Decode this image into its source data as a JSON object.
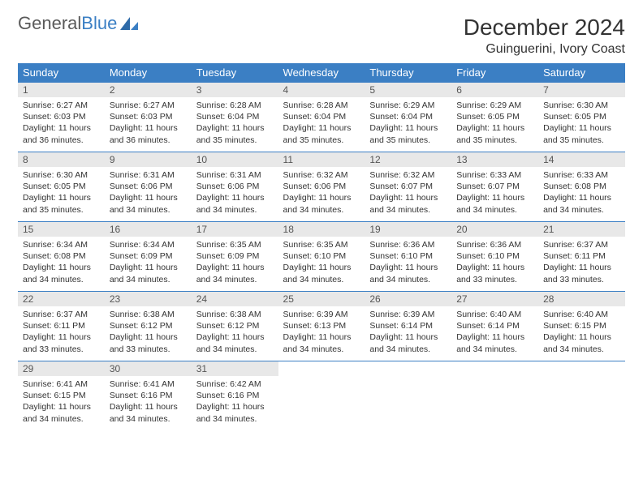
{
  "logo": {
    "text_gray": "General",
    "text_blue": "Blue"
  },
  "title": "December 2024",
  "location": "Guinguerini, Ivory Coast",
  "colors": {
    "header_bg": "#3b7fc4",
    "header_text": "#ffffff",
    "daynum_bg": "#e8e8e8",
    "border": "#3b7fc4",
    "body_text": "#333333",
    "logo_gray": "#5a5a5a",
    "logo_blue": "#3b7fc4"
  },
  "weekdays": [
    "Sunday",
    "Monday",
    "Tuesday",
    "Wednesday",
    "Thursday",
    "Friday",
    "Saturday"
  ],
  "days": [
    {
      "n": 1,
      "sunrise": "6:27 AM",
      "sunset": "6:03 PM",
      "daylight": "11 hours and 36 minutes."
    },
    {
      "n": 2,
      "sunrise": "6:27 AM",
      "sunset": "6:03 PM",
      "daylight": "11 hours and 36 minutes."
    },
    {
      "n": 3,
      "sunrise": "6:28 AM",
      "sunset": "6:04 PM",
      "daylight": "11 hours and 35 minutes."
    },
    {
      "n": 4,
      "sunrise": "6:28 AM",
      "sunset": "6:04 PM",
      "daylight": "11 hours and 35 minutes."
    },
    {
      "n": 5,
      "sunrise": "6:29 AM",
      "sunset": "6:04 PM",
      "daylight": "11 hours and 35 minutes."
    },
    {
      "n": 6,
      "sunrise": "6:29 AM",
      "sunset": "6:05 PM",
      "daylight": "11 hours and 35 minutes."
    },
    {
      "n": 7,
      "sunrise": "6:30 AM",
      "sunset": "6:05 PM",
      "daylight": "11 hours and 35 minutes."
    },
    {
      "n": 8,
      "sunrise": "6:30 AM",
      "sunset": "6:05 PM",
      "daylight": "11 hours and 35 minutes."
    },
    {
      "n": 9,
      "sunrise": "6:31 AM",
      "sunset": "6:06 PM",
      "daylight": "11 hours and 34 minutes."
    },
    {
      "n": 10,
      "sunrise": "6:31 AM",
      "sunset": "6:06 PM",
      "daylight": "11 hours and 34 minutes."
    },
    {
      "n": 11,
      "sunrise": "6:32 AM",
      "sunset": "6:06 PM",
      "daylight": "11 hours and 34 minutes."
    },
    {
      "n": 12,
      "sunrise": "6:32 AM",
      "sunset": "6:07 PM",
      "daylight": "11 hours and 34 minutes."
    },
    {
      "n": 13,
      "sunrise": "6:33 AM",
      "sunset": "6:07 PM",
      "daylight": "11 hours and 34 minutes."
    },
    {
      "n": 14,
      "sunrise": "6:33 AM",
      "sunset": "6:08 PM",
      "daylight": "11 hours and 34 minutes."
    },
    {
      "n": 15,
      "sunrise": "6:34 AM",
      "sunset": "6:08 PM",
      "daylight": "11 hours and 34 minutes."
    },
    {
      "n": 16,
      "sunrise": "6:34 AM",
      "sunset": "6:09 PM",
      "daylight": "11 hours and 34 minutes."
    },
    {
      "n": 17,
      "sunrise": "6:35 AM",
      "sunset": "6:09 PM",
      "daylight": "11 hours and 34 minutes."
    },
    {
      "n": 18,
      "sunrise": "6:35 AM",
      "sunset": "6:10 PM",
      "daylight": "11 hours and 34 minutes."
    },
    {
      "n": 19,
      "sunrise": "6:36 AM",
      "sunset": "6:10 PM",
      "daylight": "11 hours and 34 minutes."
    },
    {
      "n": 20,
      "sunrise": "6:36 AM",
      "sunset": "6:10 PM",
      "daylight": "11 hours and 33 minutes."
    },
    {
      "n": 21,
      "sunrise": "6:37 AM",
      "sunset": "6:11 PM",
      "daylight": "11 hours and 33 minutes."
    },
    {
      "n": 22,
      "sunrise": "6:37 AM",
      "sunset": "6:11 PM",
      "daylight": "11 hours and 33 minutes."
    },
    {
      "n": 23,
      "sunrise": "6:38 AM",
      "sunset": "6:12 PM",
      "daylight": "11 hours and 33 minutes."
    },
    {
      "n": 24,
      "sunrise": "6:38 AM",
      "sunset": "6:12 PM",
      "daylight": "11 hours and 34 minutes."
    },
    {
      "n": 25,
      "sunrise": "6:39 AM",
      "sunset": "6:13 PM",
      "daylight": "11 hours and 34 minutes."
    },
    {
      "n": 26,
      "sunrise": "6:39 AM",
      "sunset": "6:14 PM",
      "daylight": "11 hours and 34 minutes."
    },
    {
      "n": 27,
      "sunrise": "6:40 AM",
      "sunset": "6:14 PM",
      "daylight": "11 hours and 34 minutes."
    },
    {
      "n": 28,
      "sunrise": "6:40 AM",
      "sunset": "6:15 PM",
      "daylight": "11 hours and 34 minutes."
    },
    {
      "n": 29,
      "sunrise": "6:41 AM",
      "sunset": "6:15 PM",
      "daylight": "11 hours and 34 minutes."
    },
    {
      "n": 30,
      "sunrise": "6:41 AM",
      "sunset": "6:16 PM",
      "daylight": "11 hours and 34 minutes."
    },
    {
      "n": 31,
      "sunrise": "6:42 AM",
      "sunset": "6:16 PM",
      "daylight": "11 hours and 34 minutes."
    }
  ],
  "labels": {
    "sunrise_prefix": "Sunrise: ",
    "sunset_prefix": "Sunset: ",
    "daylight_prefix": "Daylight: "
  },
  "start_weekday": 0,
  "trailing_empty": 4
}
